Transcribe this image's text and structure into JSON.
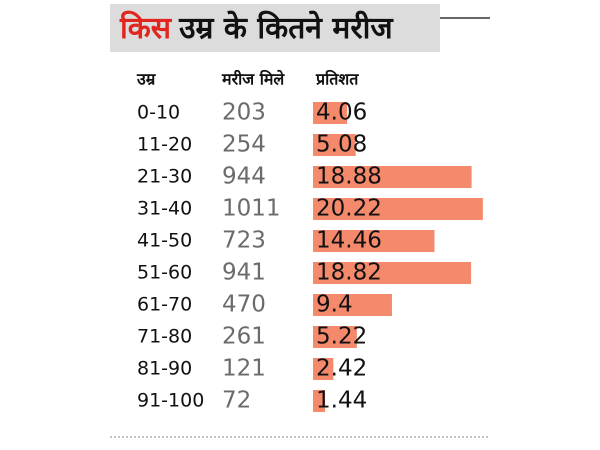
{
  "chart_data": {
    "type": "bar",
    "title_parts": [
      "किस",
      "उम्र के कितने मरीज"
    ],
    "title_colors": [
      "#e0261f",
      "#111111"
    ],
    "columns": [
      "उम्र",
      "मरीज मिले",
      "प्रतिशत"
    ],
    "categories": [
      "0-10",
      "11-20",
      "21-30",
      "31-40",
      "41-50",
      "51-60",
      "61-70",
      "71-80",
      "81-90",
      "91-100"
    ],
    "counts": [
      203,
      254,
      944,
      1011,
      723,
      941,
      470,
      261,
      121,
      72
    ],
    "values": [
      4.06,
      5.08,
      18.88,
      20.22,
      14.46,
      18.82,
      9.4,
      5.22,
      2.42,
      1.44
    ],
    "color": "#f4896c"
  }
}
